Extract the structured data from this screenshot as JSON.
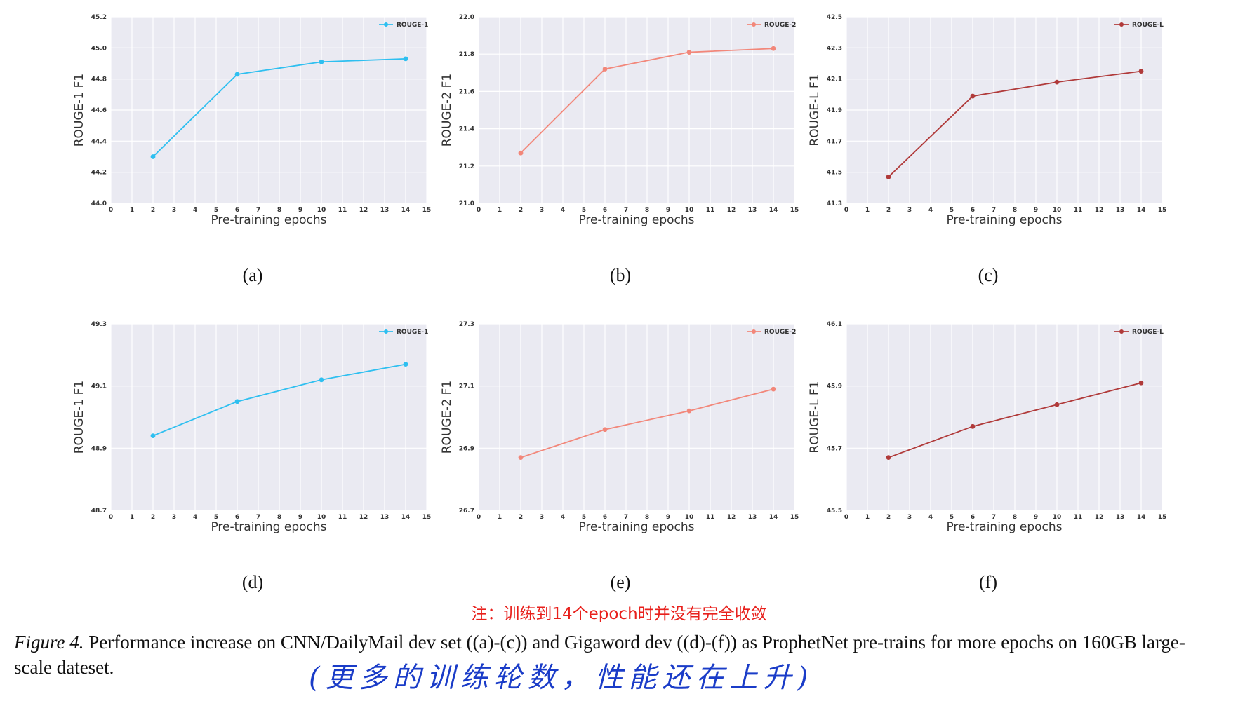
{
  "chart_data": [
    {
      "id": "a",
      "type": "line",
      "panel_label": "(a)",
      "xlabel": "Pre-training epochs",
      "ylabel": "ROUGE-1 F1",
      "xlim": [
        0,
        15
      ],
      "ylim": [
        44.0,
        45.2
      ],
      "x_ticks": [
        0,
        1,
        2,
        3,
        4,
        5,
        6,
        7,
        8,
        9,
        10,
        11,
        12,
        13,
        14,
        15
      ],
      "y_ticks": [
        44.0,
        44.2,
        44.4,
        44.6,
        44.8,
        45.0,
        45.2
      ],
      "y_tick_labels": [
        "44.0",
        "44.2",
        "44.4",
        "44.6",
        "44.8",
        "45.0",
        "45.2"
      ],
      "grid": true,
      "legend": "top-right",
      "series": [
        {
          "name": "ROUGE-1",
          "color": "#2ebff0",
          "x": [
            2,
            6,
            10,
            14
          ],
          "values": [
            44.3,
            44.83,
            44.91,
            44.93
          ]
        }
      ]
    },
    {
      "id": "b",
      "type": "line",
      "panel_label": "(b)",
      "xlabel": "Pre-training epochs",
      "ylabel": "ROUGE-2 F1",
      "xlim": [
        0,
        15
      ],
      "ylim": [
        21.0,
        22.0
      ],
      "x_ticks": [
        0,
        1,
        2,
        3,
        4,
        5,
        6,
        7,
        8,
        9,
        10,
        11,
        12,
        13,
        14,
        15
      ],
      "y_ticks": [
        21.0,
        21.2,
        21.4,
        21.6,
        21.8,
        22.0
      ],
      "y_tick_labels": [
        "21.0",
        "21.2",
        "21.4",
        "21.6",
        "21.8",
        "22.0"
      ],
      "grid": true,
      "legend": "top-right",
      "series": [
        {
          "name": "ROUGE-2",
          "color": "#f2877a",
          "x": [
            2,
            6,
            10,
            14
          ],
          "values": [
            21.27,
            21.72,
            21.81,
            21.83
          ]
        }
      ]
    },
    {
      "id": "c",
      "type": "line",
      "panel_label": "(c)",
      "xlabel": "Pre-training epochs",
      "ylabel": "ROUGE-L F1",
      "xlim": [
        0,
        15
      ],
      "ylim": [
        41.3,
        42.5
      ],
      "x_ticks": [
        0,
        1,
        2,
        3,
        4,
        5,
        6,
        7,
        8,
        9,
        10,
        11,
        12,
        13,
        14,
        15
      ],
      "y_ticks": [
        41.3,
        41.5,
        41.7,
        41.9,
        42.1,
        42.3,
        42.5
      ],
      "y_tick_labels": [
        "41.3",
        "41.5",
        "41.7",
        "41.9",
        "42.1",
        "42.3",
        "42.5"
      ],
      "grid": true,
      "legend": "top-right",
      "series": [
        {
          "name": "ROUGE-L",
          "color": "#b03a3a",
          "x": [
            2,
            6,
            10,
            14
          ],
          "values": [
            41.47,
            41.99,
            42.08,
            42.15
          ]
        }
      ]
    },
    {
      "id": "d",
      "type": "line",
      "panel_label": "(d)",
      "xlabel": "Pre-training epochs",
      "ylabel": "ROUGE-1 F1",
      "xlim": [
        0,
        15
      ],
      "ylim": [
        48.7,
        49.3
      ],
      "x_ticks": [
        0,
        1,
        2,
        3,
        4,
        5,
        6,
        7,
        8,
        9,
        10,
        11,
        12,
        13,
        14,
        15
      ],
      "y_ticks": [
        48.7,
        48.9,
        49.1,
        49.3
      ],
      "y_tick_labels": [
        "48.7",
        "48.9",
        "49.1",
        "49.3"
      ],
      "grid": true,
      "legend": "top-right",
      "series": [
        {
          "name": "ROUGE-1",
          "color": "#2ebff0",
          "x": [
            2,
            6,
            10,
            14
          ],
          "values": [
            48.94,
            49.05,
            49.12,
            49.17
          ]
        }
      ]
    },
    {
      "id": "e",
      "type": "line",
      "panel_label": "(e)",
      "xlabel": "Pre-training epochs",
      "ylabel": "ROUGE-2 F1",
      "xlim": [
        0,
        15
      ],
      "ylim": [
        26.7,
        27.3
      ],
      "x_ticks": [
        0,
        1,
        2,
        3,
        4,
        5,
        6,
        7,
        8,
        9,
        10,
        11,
        12,
        13,
        14,
        15
      ],
      "y_ticks": [
        26.7,
        26.9,
        27.1,
        27.3
      ],
      "y_tick_labels": [
        "26.7",
        "26.9",
        "27.1",
        "27.3"
      ],
      "grid": true,
      "legend": "top-right",
      "series": [
        {
          "name": "ROUGE-2",
          "color": "#f2877a",
          "x": [
            2,
            6,
            10,
            14
          ],
          "values": [
            26.87,
            26.96,
            27.02,
            27.09
          ]
        }
      ]
    },
    {
      "id": "f",
      "type": "line",
      "panel_label": "(f)",
      "xlabel": "Pre-training epochs",
      "ylabel": "ROUGE-L F1",
      "xlim": [
        0,
        15
      ],
      "ylim": [
        45.5,
        46.1
      ],
      "x_ticks": [
        0,
        1,
        2,
        3,
        4,
        5,
        6,
        7,
        8,
        9,
        10,
        11,
        12,
        13,
        14,
        15
      ],
      "y_ticks": [
        45.5,
        45.7,
        45.9,
        46.1
      ],
      "y_tick_labels": [
        "45.5",
        "45.7",
        "45.9",
        "46.1"
      ],
      "grid": true,
      "legend": "top-right",
      "series": [
        {
          "name": "ROUGE-L",
          "color": "#b03a3a",
          "x": [
            2,
            6,
            10,
            14
          ],
          "values": [
            45.67,
            45.77,
            45.84,
            45.91
          ]
        }
      ]
    }
  ],
  "note": "注：训练到14个epoch时并没有完全收敛",
  "caption": {
    "figure_number": "Figure 4.",
    "text": " Performance increase on CNN/DailyMail dev set ((a)-(c)) and Gigaword dev ((d)-(f)) as ProphetNet pre-trains for more epochs on 160GB large-scale dateset."
  },
  "handwritten_note": "(更多的训练轮数，性能还在上升)",
  "colors": {
    "plot_background": "#eaeaf2",
    "grid": "#ffffff",
    "note": "#e8201c",
    "handwriting": "#1a3cc8"
  }
}
